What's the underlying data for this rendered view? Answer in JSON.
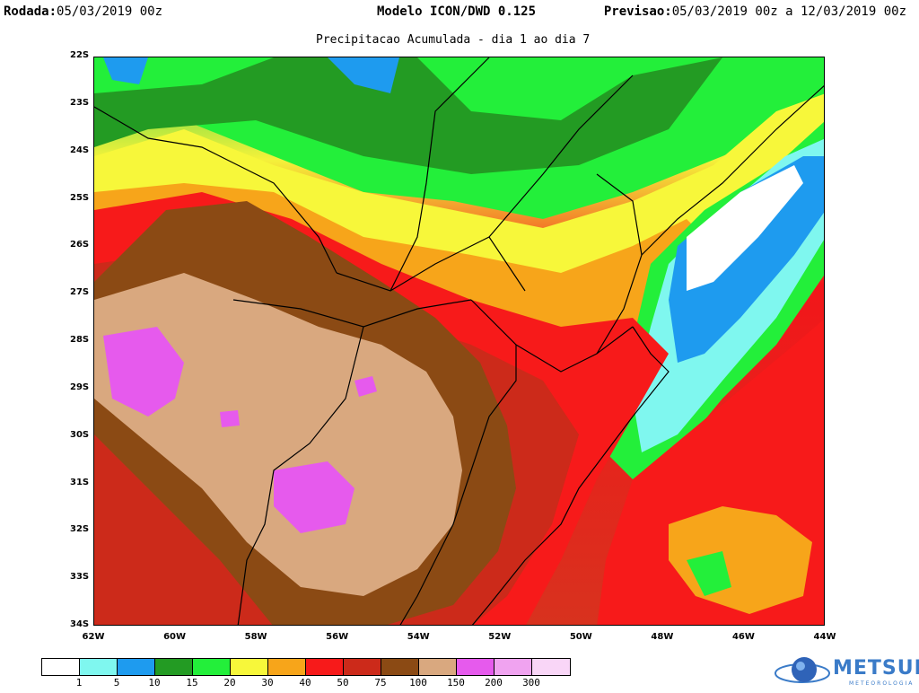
{
  "header": {
    "rodada_label": "Rodada:",
    "rodada_value": "05/03/2019 00z",
    "model": "Modelo ICON/DWD 0.125",
    "previsao_label": "Previsao:",
    "previsao_value": "05/03/2019 00z a 12/03/2019 00z"
  },
  "subtitle": "Precipitacao Acumulada - dia 1 ao dia 7",
  "map": {
    "lat_labels": [
      "22S",
      "23S",
      "24S",
      "25S",
      "26S",
      "27S",
      "28S",
      "29S",
      "30S",
      "31S",
      "32S",
      "33S",
      "34S"
    ],
    "lon_labels": [
      "62W",
      "60W",
      "58W",
      "56W",
      "54W",
      "52W",
      "50W",
      "48W",
      "46W",
      "44W"
    ]
  },
  "legend": {
    "colors": [
      "#ffffff",
      "#7ff7ef",
      "#1e9bef",
      "#239b23",
      "#23ef3a",
      "#f7f73a",
      "#f7a51a",
      "#f71a1a",
      "#cc2a1a",
      "#8b4a14",
      "#d9a87f",
      "#e65aed",
      "#f0a3f0",
      "#f9d6f7"
    ],
    "labels": [
      "1",
      "5",
      "10",
      "15",
      "20",
      "30",
      "40",
      "50",
      "75",
      "100",
      "150",
      "200",
      "300"
    ]
  },
  "logo": {
    "text": "METSUL",
    "sub": "METEOROLOGIA"
  }
}
